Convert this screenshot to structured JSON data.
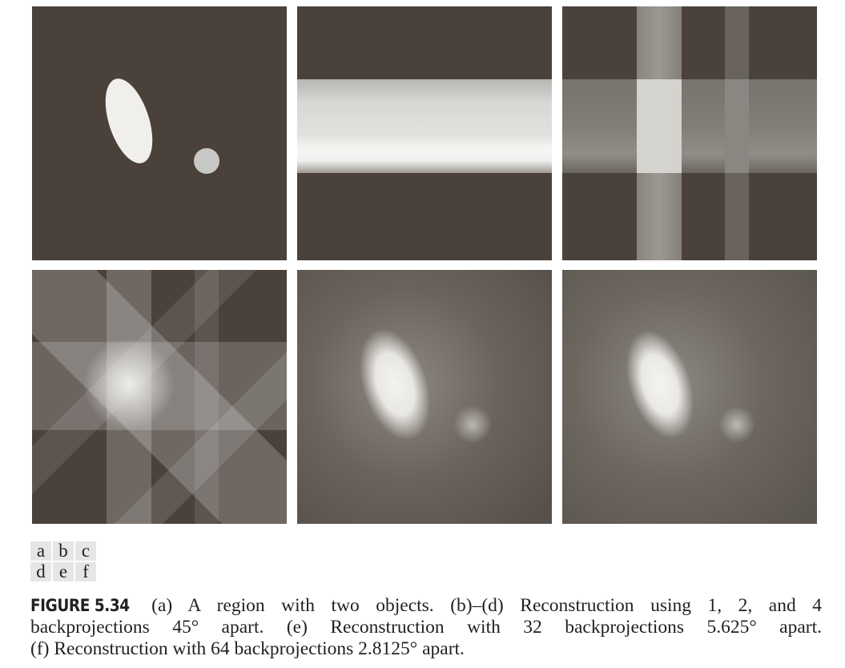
{
  "figure": {
    "panel_labels": [
      [
        "a",
        "b",
        "c"
      ],
      [
        "d",
        "e",
        "f"
      ]
    ],
    "caption": {
      "label": "FIGURE 5.34",
      "lines": [
        "(a) A region with two objects. (b)–(d) Reconstruction using 1, 2, and 4",
        "backprojections 45° apart. (e) Reconstruction with 32 backprojections 5.625° apart.",
        "(f) Reconstruction with 64 backprojections 2.8125° apart."
      ]
    },
    "colors": {
      "background_dark": "#4a413b",
      "object_light": "#f0efec",
      "small_object": "#c8c8c6",
      "recon_background": "#6a635c"
    }
  }
}
